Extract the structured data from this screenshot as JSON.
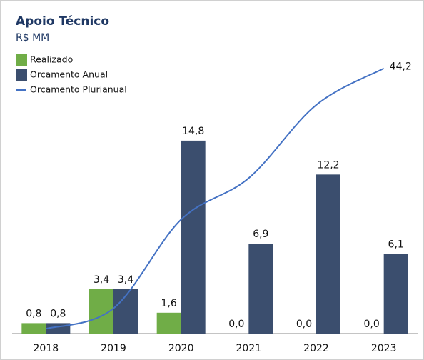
{
  "chart_data": {
    "type": "bar",
    "title": "Apoio Técnico",
    "subtitle": "R$ MM",
    "categories": [
      "2018",
      "2019",
      "2020",
      "2021",
      "2022",
      "2023"
    ],
    "ylim": [
      0,
      16
    ],
    "y2lim": [
      0,
      50
    ],
    "grid": false,
    "series": [
      {
        "name": "Realizado",
        "color": "#70ad47",
        "type": "bar",
        "values": [
          0.8,
          3.4,
          1.6,
          0,
          0,
          0
        ],
        "value_labels": [
          "0,8",
          "3,4",
          "1,6",
          "0,0",
          "0,0",
          "0,0"
        ]
      },
      {
        "name": "Orçamento Anual",
        "color": "#3b4e6e",
        "type": "bar",
        "values": [
          0.8,
          3.4,
          14.8,
          6.9,
          12.2,
          6.1
        ],
        "value_labels": [
          "0,8",
          "3,4",
          "14,8",
          "6,9",
          "12,2",
          "6,1"
        ]
      },
      {
        "name": "Orçamento Plurianual",
        "color": "#4472c4",
        "type": "line",
        "axis": "y2",
        "values": [
          0.8,
          4.2,
          19,
          25.9,
          38.1,
          44.2
        ],
        "value_labels": [
          null,
          null,
          null,
          null,
          null,
          "44,2"
        ]
      }
    ]
  }
}
